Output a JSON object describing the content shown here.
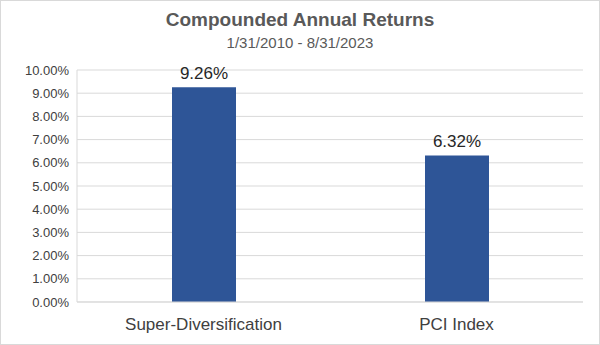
{
  "chart_data": {
    "type": "bar",
    "title": "Compounded Annual Returns",
    "subtitle": "1/31/2010 - 8/31/2023",
    "categories": [
      "Super-Diversification",
      "PCI Index"
    ],
    "values": [
      9.26,
      6.32
    ],
    "value_labels": [
      "9.26%",
      "6.32%"
    ],
    "data_labels": true,
    "color": "#2e5597",
    "ylim": [
      0,
      10
    ],
    "yticks": [
      {
        "value": 0,
        "label": "0.00%"
      },
      {
        "value": 1,
        "label": "1.00%"
      },
      {
        "value": 2,
        "label": "2.00%"
      },
      {
        "value": 3,
        "label": "3.00%"
      },
      {
        "value": 4,
        "label": "4.00%"
      },
      {
        "value": 5,
        "label": "5.00%"
      },
      {
        "value": 6,
        "label": "6.00%"
      },
      {
        "value": 7,
        "label": "7.00%"
      },
      {
        "value": 8,
        "label": "8.00%"
      },
      {
        "value": 9,
        "label": "9.00%"
      },
      {
        "value": 10,
        "label": "10.00%"
      }
    ],
    "grid": true
  }
}
